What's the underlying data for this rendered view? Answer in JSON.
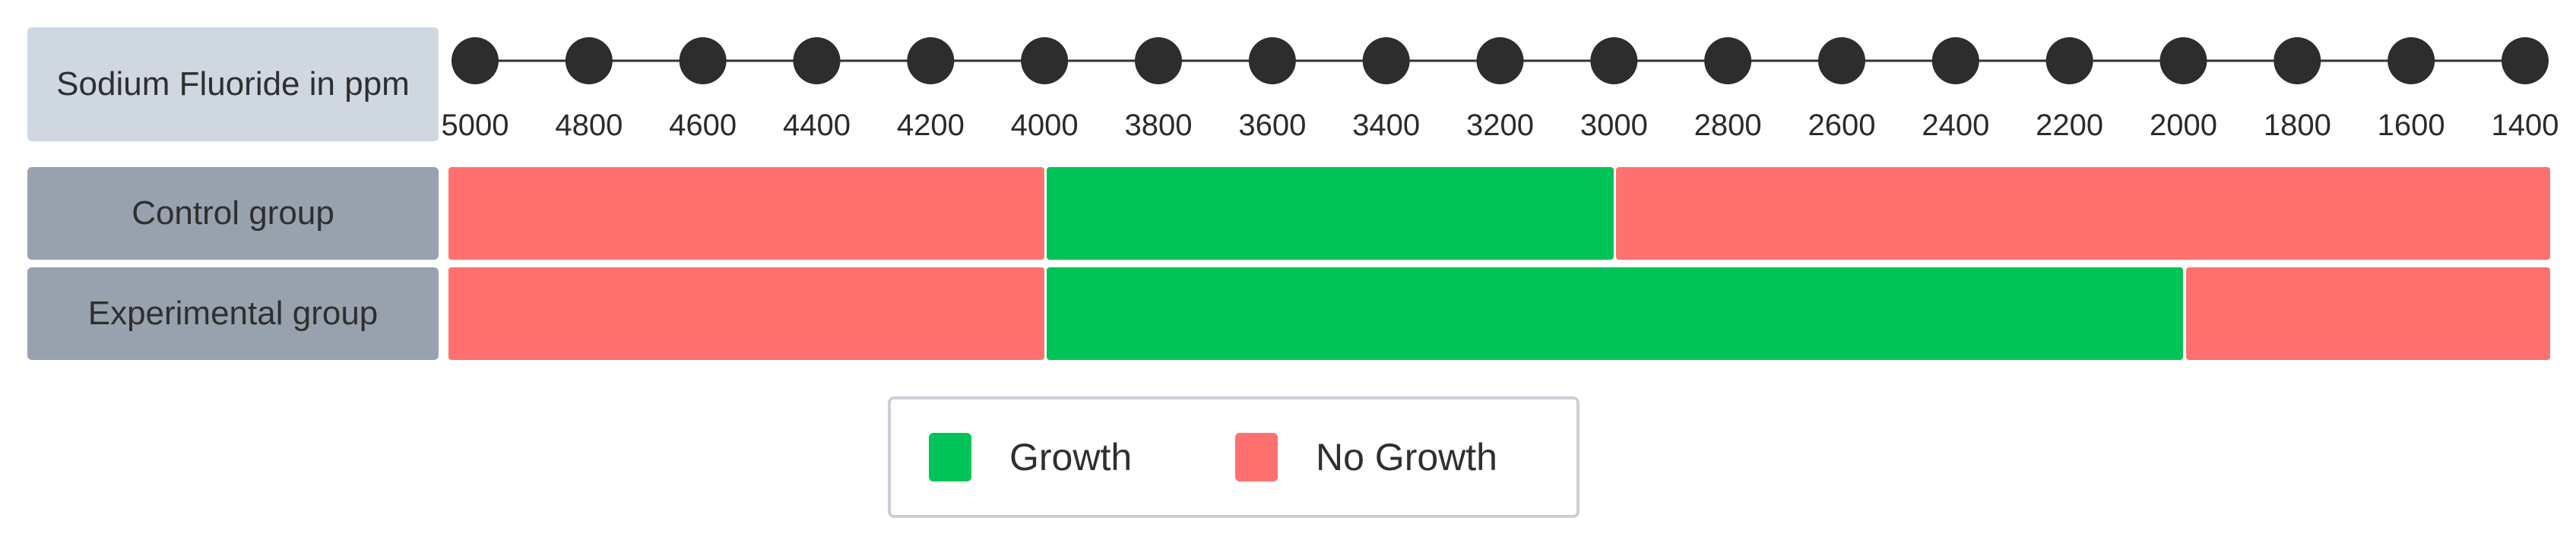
{
  "axis": {
    "label": "Sodium Fluoride in ppm",
    "ticks": [
      "5000",
      "4800",
      "4600",
      "4400",
      "4200",
      "4000",
      "3800",
      "3600",
      "3400",
      "3200",
      "3000",
      "2800",
      "2600",
      "2400",
      "2200",
      "2000",
      "1800",
      "1600",
      "1400"
    ],
    "start_value": 5000,
    "end_value": 1400
  },
  "groups": [
    {
      "name": "Control group",
      "segments": [
        {
          "from": 5000,
          "to": 4000,
          "status": "no_growth"
        },
        {
          "from": 4000,
          "to": 3000,
          "status": "growth"
        },
        {
          "from": 3000,
          "to": 1400,
          "status": "no_growth"
        }
      ]
    },
    {
      "name": "Experimental group",
      "segments": [
        {
          "from": 5000,
          "to": 4000,
          "status": "no_growth"
        },
        {
          "from": 4000,
          "to": 2000,
          "status": "growth"
        },
        {
          "from": 2000,
          "to": 1400,
          "status": "no_growth"
        }
      ]
    }
  ],
  "legend": {
    "growth_label": "Growth",
    "no_growth_label": "No Growth"
  },
  "colors": {
    "growth": "#00c457",
    "no_growth": "#ff716e",
    "node": "#2d2d2d",
    "axis_label_bg": "#cfd8e1",
    "group_label_bg": "#98a2ae"
  }
}
